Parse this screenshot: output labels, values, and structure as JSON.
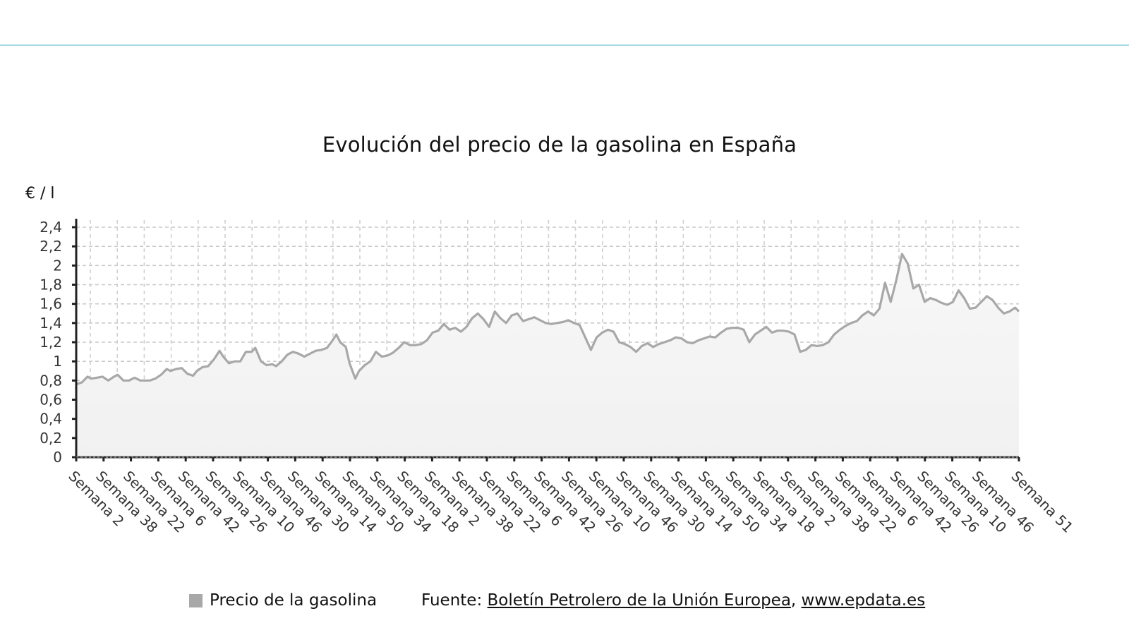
{
  "header": {
    "rule_color": "#a9d8e6"
  },
  "chart_data": {
    "type": "area",
    "title": "Evolución del precio de la gasolina en España",
    "xlabel": "",
    "ylabel": "€ / l",
    "ylim": [
      0,
      2.4
    ],
    "yticks": [
      "0",
      "0,2",
      "0,4",
      "0,6",
      "0,8",
      "1",
      "1,2",
      "1,4",
      "1,6",
      "1,8",
      "2",
      "2,2",
      "2,4"
    ],
    "grid": true,
    "legend_position": "bottom",
    "categories": [
      "Semana 2",
      "Semana 38",
      "Semana 22",
      "Semana 6",
      "Semana 42",
      "Semana 26",
      "Semana 10",
      "Semana 46",
      "Semana 30",
      "Semana 14",
      "Semana 50",
      "Semana 34",
      "Semana 18",
      "Semana 2",
      "Semana 38",
      "Semana 22",
      "Semana 6",
      "Semana 42",
      "Semana 26",
      "Semana 10",
      "Semana 46",
      "Semana 30",
      "Semana 14",
      "Semana 50",
      "Semana 34",
      "Semana 18",
      "Semana 2",
      "Semana 38",
      "Semana 22",
      "Semana 6",
      "Semana 42",
      "Semana 26",
      "Semana 10",
      "Semana 46",
      "Semana 51"
    ],
    "series": [
      {
        "name": "Precio de la gasolina",
        "color": "#a8a8a8",
        "x_fraction": [
          0.0,
          0.006,
          0.012,
          0.016,
          0.022,
          0.028,
          0.034,
          0.04,
          0.044,
          0.05,
          0.056,
          0.062,
          0.068,
          0.072,
          0.078,
          0.084,
          0.09,
          0.096,
          0.1,
          0.106,
          0.112,
          0.118,
          0.124,
          0.128,
          0.134,
          0.14,
          0.146,
          0.152,
          0.156,
          0.162,
          0.168,
          0.174,
          0.18,
          0.186,
          0.19,
          0.196,
          0.202,
          0.208,
          0.212,
          0.218,
          0.224,
          0.23,
          0.236,
          0.242,
          0.248,
          0.254,
          0.26,
          0.266,
          0.272,
          0.276,
          0.28,
          0.286,
          0.29,
          0.296,
          0.3,
          0.306,
          0.312,
          0.318,
          0.324,
          0.33,
          0.336,
          0.342,
          0.348,
          0.354,
          0.36,
          0.366,
          0.372,
          0.378,
          0.384,
          0.39,
          0.396,
          0.402,
          0.408,
          0.414,
          0.42,
          0.426,
          0.432,
          0.438,
          0.444,
          0.45,
          0.456,
          0.462,
          0.468,
          0.474,
          0.48,
          0.486,
          0.492,
          0.498,
          0.504,
          0.51,
          0.516,
          0.522,
          0.528,
          0.534,
          0.54,
          0.546,
          0.552,
          0.558,
          0.564,
          0.57,
          0.576,
          0.582,
          0.588,
          0.594,
          0.6,
          0.606,
          0.612,
          0.618,
          0.624,
          0.63,
          0.636,
          0.642,
          0.648,
          0.654,
          0.66,
          0.666,
          0.672,
          0.678,
          0.684,
          0.69,
          0.696,
          0.702,
          0.708,
          0.714,
          0.72,
          0.726,
          0.732,
          0.738,
          0.744,
          0.75,
          0.756,
          0.762,
          0.768,
          0.774,
          0.78,
          0.786,
          0.792,
          0.798,
          0.804,
          0.81,
          0.816,
          0.822,
          0.828,
          0.834,
          0.84,
          0.846,
          0.852,
          0.858,
          0.864,
          0.87,
          0.876,
          0.882,
          0.888,
          0.894,
          0.9,
          0.906,
          0.912,
          0.918,
          0.924,
          0.93,
          0.936,
          0.942,
          0.948,
          0.954,
          0.96,
          0.966,
          0.972,
          0.978,
          0.984,
          0.99,
          0.996,
          1.0
        ],
        "values": [
          0.76,
          0.78,
          0.84,
          0.82,
          0.83,
          0.84,
          0.8,
          0.84,
          0.86,
          0.8,
          0.8,
          0.83,
          0.8,
          0.8,
          0.8,
          0.82,
          0.86,
          0.92,
          0.9,
          0.92,
          0.93,
          0.87,
          0.85,
          0.9,
          0.94,
          0.95,
          1.02,
          1.11,
          1.05,
          0.98,
          1.0,
          1.0,
          1.1,
          1.1,
          1.14,
          1.0,
          0.96,
          0.97,
          0.95,
          1.0,
          1.07,
          1.1,
          1.08,
          1.05,
          1.08,
          1.11,
          1.12,
          1.14,
          1.22,
          1.28,
          1.2,
          1.15,
          0.98,
          0.82,
          0.9,
          0.96,
          1.0,
          1.1,
          1.05,
          1.06,
          1.09,
          1.14,
          1.2,
          1.17,
          1.17,
          1.18,
          1.22,
          1.3,
          1.32,
          1.39,
          1.33,
          1.35,
          1.31,
          1.36,
          1.45,
          1.5,
          1.44,
          1.36,
          1.52,
          1.45,
          1.4,
          1.48,
          1.5,
          1.42,
          1.44,
          1.46,
          1.43,
          1.4,
          1.39,
          1.4,
          1.41,
          1.43,
          1.4,
          1.38,
          1.25,
          1.12,
          1.25,
          1.3,
          1.33,
          1.31,
          1.2,
          1.18,
          1.15,
          1.1,
          1.16,
          1.19,
          1.15,
          1.18,
          1.2,
          1.22,
          1.25,
          1.24,
          1.2,
          1.19,
          1.22,
          1.24,
          1.26,
          1.25,
          1.3,
          1.34,
          1.35,
          1.35,
          1.33,
          1.2,
          1.28,
          1.32,
          1.36,
          1.3,
          1.32,
          1.32,
          1.31,
          1.28,
          1.1,
          1.12,
          1.17,
          1.16,
          1.17,
          1.2,
          1.28,
          1.33,
          1.37,
          1.4,
          1.42,
          1.48,
          1.52,
          1.48,
          1.55,
          1.82,
          1.62,
          1.85,
          2.12,
          2.02,
          1.76,
          1.8,
          1.62,
          1.66,
          1.64,
          1.61,
          1.59,
          1.62,
          1.74,
          1.66,
          1.55,
          1.56,
          1.62,
          1.68,
          1.64,
          1.56,
          1.5,
          1.52,
          1.56,
          1.52,
          1.46,
          1.49,
          1.47,
          1.48
        ]
      }
    ]
  },
  "legend": {
    "label": "Precio de la gasolina",
    "color": "#a8a8a8"
  },
  "footer": {
    "source_prefix": "Fuente: ",
    "source_link": "Boletín Petrolero de la Unión Europea",
    "separator": ", ",
    "site_link": "www.epdata.es"
  }
}
